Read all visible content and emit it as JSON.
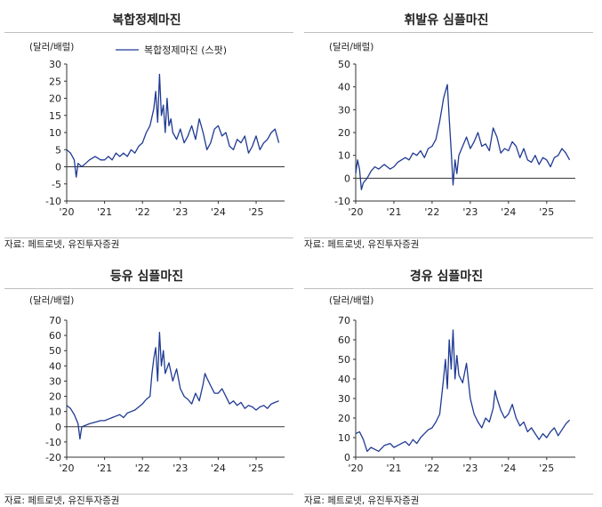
{
  "chart_data": [
    {
      "type": "line",
      "title": "복합정제마진",
      "ylabel": "(달러/배럴)",
      "legend": [
        "복합정제마진 (스팟)"
      ],
      "legend_position": "top",
      "ylim": [
        -10,
        30
      ],
      "yticks": [
        -10,
        -5,
        0,
        5,
        10,
        15,
        20,
        25,
        30
      ],
      "xlim": [
        2020.0,
        2025.75
      ],
      "xticks": [
        "'20",
        "'21",
        "'22",
        "'23",
        "'24",
        "'25"
      ],
      "source": "자료: 페트로넷, 유진투자증권",
      "color": "#1f3a93",
      "series": [
        {
          "x": [
            2020.0,
            2020.1,
            2020.2,
            2020.25,
            2020.3,
            2020.4,
            2020.5,
            2020.6,
            2020.75,
            2020.9,
            2021.0,
            2021.1,
            2021.2,
            2021.3,
            2021.4,
            2021.5,
            2021.6,
            2021.7,
            2021.8,
            2021.9,
            2022.0,
            2022.1,
            2022.2,
            2022.3,
            2022.35,
            2022.4,
            2022.45,
            2022.5,
            2022.55,
            2022.6,
            2022.65,
            2022.7,
            2022.75,
            2022.8,
            2022.9,
            2023.0,
            2023.1,
            2023.2,
            2023.3,
            2023.4,
            2023.5,
            2023.6,
            2023.7,
            2023.8,
            2023.9,
            2024.0,
            2024.1,
            2024.2,
            2024.3,
            2024.4,
            2024.5,
            2024.6,
            2024.7,
            2024.8,
            2024.9,
            2025.0,
            2025.1,
            2025.2,
            2025.3,
            2025.4,
            2025.5,
            2025.6
          ],
          "y": [
            5,
            4,
            2,
            -3,
            1,
            0,
            1,
            2,
            3,
            2,
            2,
            3,
            2,
            4,
            3,
            4,
            3,
            5,
            4,
            6,
            7,
            10,
            12,
            17,
            22,
            13,
            27,
            15,
            18,
            10,
            20,
            12,
            14,
            10,
            8,
            11,
            7,
            9,
            12,
            8,
            14,
            10,
            5,
            7,
            11,
            12,
            9,
            10,
            6,
            5,
            8,
            7,
            9,
            4,
            6,
            9,
            5,
            7,
            8,
            10,
            11,
            7
          ]
        }
      ]
    },
    {
      "type": "line",
      "title": "휘발유 심플마진",
      "ylabel": "(달러/배럴)",
      "ylim": [
        -10,
        50
      ],
      "yticks": [
        -10,
        0,
        10,
        20,
        30,
        40,
        50
      ],
      "xlim": [
        2020.0,
        2025.75
      ],
      "xticks": [
        "'20",
        "'21",
        "'22",
        "'23",
        "'24",
        "'25"
      ],
      "source": "자료: 페트로넷, 유진투자증권",
      "color": "#1f3a93",
      "series": [
        {
          "x": [
            2020.0,
            2020.05,
            2020.1,
            2020.15,
            2020.2,
            2020.3,
            2020.4,
            2020.5,
            2020.6,
            2020.75,
            2020.9,
            2021.0,
            2021.1,
            2021.2,
            2021.3,
            2021.4,
            2021.5,
            2021.6,
            2021.7,
            2021.8,
            2021.9,
            2022.0,
            2022.1,
            2022.2,
            2022.25,
            2022.3,
            2022.35,
            2022.4,
            2022.45,
            2022.5,
            2022.55,
            2022.6,
            2022.65,
            2022.7,
            2022.8,
            2022.9,
            2023.0,
            2023.1,
            2023.2,
            2023.3,
            2023.4,
            2023.5,
            2023.6,
            2023.7,
            2023.8,
            2023.9,
            2024.0,
            2024.1,
            2024.2,
            2024.3,
            2024.4,
            2024.5,
            2024.6,
            2024.7,
            2024.8,
            2024.9,
            2025.0,
            2025.1,
            2025.2,
            2025.3,
            2025.4,
            2025.5,
            2025.6
          ],
          "y": [
            2,
            8,
            4,
            -5,
            -2,
            0,
            3,
            5,
            4,
            6,
            4,
            5,
            7,
            8,
            9,
            8,
            11,
            10,
            12,
            9,
            13,
            14,
            17,
            25,
            30,
            35,
            38,
            41,
            26,
            12,
            -3,
            8,
            2,
            10,
            14,
            18,
            13,
            16,
            20,
            14,
            15,
            12,
            22,
            18,
            11,
            13,
            12,
            16,
            14,
            9,
            13,
            8,
            7,
            10,
            6,
            9,
            8,
            5,
            9,
            10,
            13,
            11,
            8
          ]
        }
      ]
    },
    {
      "type": "line",
      "title": "등유 심플마진",
      "ylabel": "(달러/배럴)",
      "ylim": [
        -20,
        70
      ],
      "yticks": [
        -20,
        -10,
        0,
        10,
        20,
        30,
        40,
        50,
        60,
        70
      ],
      "xlim": [
        2020.0,
        2025.75
      ],
      "xticks": [
        "'20",
        "'21",
        "'22",
        "'23",
        "'24",
        "'25"
      ],
      "source": "자료: 페트로넷, 유진투자증권",
      "color": "#1f3a93",
      "series": [
        {
          "x": [
            2020.0,
            2020.1,
            2020.2,
            2020.3,
            2020.35,
            2020.4,
            2020.5,
            2020.6,
            2020.75,
            2020.9,
            2021.0,
            2021.1,
            2021.2,
            2021.3,
            2021.4,
            2021.5,
            2021.6,
            2021.7,
            2021.8,
            2021.9,
            2022.0,
            2022.1,
            2022.2,
            2022.25,
            2022.3,
            2022.35,
            2022.4,
            2022.45,
            2022.5,
            2022.55,
            2022.6,
            2022.7,
            2022.8,
            2022.9,
            2023.0,
            2023.1,
            2023.2,
            2023.3,
            2023.4,
            2023.5,
            2023.6,
            2023.65,
            2023.7,
            2023.8,
            2023.9,
            2024.0,
            2024.1,
            2024.2,
            2024.3,
            2024.4,
            2024.5,
            2024.6,
            2024.7,
            2024.8,
            2024.9,
            2025.0,
            2025.1,
            2025.2,
            2025.3,
            2025.4,
            2025.5,
            2025.6
          ],
          "y": [
            14,
            12,
            8,
            2,
            -8,
            0,
            1,
            2,
            3,
            4,
            4,
            5,
            6,
            7,
            8,
            6,
            9,
            10,
            11,
            13,
            15,
            18,
            20,
            35,
            45,
            52,
            30,
            62,
            40,
            50,
            35,
            42,
            30,
            38,
            25,
            20,
            18,
            15,
            22,
            17,
            28,
            35,
            32,
            27,
            22,
            22,
            25,
            20,
            15,
            17,
            14,
            16,
            12,
            14,
            13,
            11,
            13,
            14,
            12,
            15,
            16,
            17
          ]
        }
      ]
    },
    {
      "type": "line",
      "title": "경유 심플마진",
      "ylabel": "(달러/배럴)",
      "ylim": [
        0,
        70
      ],
      "yticks": [
        0,
        10,
        20,
        30,
        40,
        50,
        60,
        70
      ],
      "xlim": [
        2020.0,
        2025.75
      ],
      "xticks": [
        "'20",
        "'21",
        "'22",
        "'23",
        "'24",
        "'25"
      ],
      "source": "자료: 페트로넷, 유진투자증권",
      "color": "#1f3a93",
      "series": [
        {
          "x": [
            2020.0,
            2020.1,
            2020.2,
            2020.3,
            2020.4,
            2020.5,
            2020.6,
            2020.75,
            2020.9,
            2021.0,
            2021.1,
            2021.2,
            2021.3,
            2021.4,
            2021.5,
            2021.6,
            2021.7,
            2021.8,
            2021.9,
            2022.0,
            2022.1,
            2022.2,
            2022.3,
            2022.35,
            2022.4,
            2022.45,
            2022.5,
            2022.55,
            2022.6,
            2022.65,
            2022.7,
            2022.8,
            2022.9,
            2023.0,
            2023.1,
            2023.2,
            2023.3,
            2023.4,
            2023.5,
            2023.6,
            2023.65,
            2023.7,
            2023.8,
            2023.9,
            2024.0,
            2024.1,
            2024.2,
            2024.3,
            2024.4,
            2024.5,
            2024.6,
            2024.7,
            2024.8,
            2024.9,
            2025.0,
            2025.1,
            2025.2,
            2025.3,
            2025.4,
            2025.5,
            2025.6
          ],
          "y": [
            12,
            13,
            9,
            3,
            5,
            4,
            3,
            6,
            7,
            5,
            6,
            7,
            8,
            6,
            9,
            7,
            10,
            12,
            14,
            15,
            18,
            22,
            40,
            50,
            35,
            60,
            45,
            65,
            40,
            52,
            42,
            38,
            48,
            30,
            22,
            18,
            15,
            20,
            18,
            25,
            34,
            30,
            24,
            20,
            22,
            27,
            20,
            16,
            18,
            13,
            15,
            12,
            9,
            12,
            10,
            13,
            15,
            11,
            14,
            17,
            19
          ]
        }
      ]
    }
  ]
}
